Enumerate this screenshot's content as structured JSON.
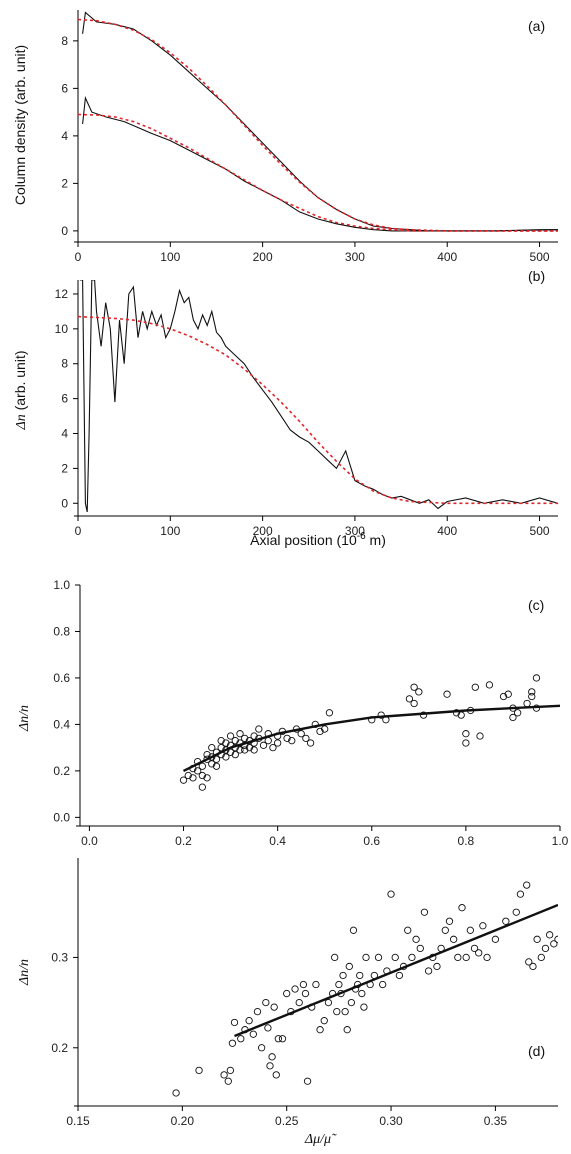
{
  "chart_data": [
    {
      "panel": "(a)",
      "type": "line",
      "ylabel": "Column density (arb. unit)",
      "xlabel": "",
      "xlim": [
        0,
        520
      ],
      "ylim": [
        -0.3,
        9.3
      ],
      "xticks": [
        "0",
        "100",
        "200",
        "300",
        "400",
        "500"
      ],
      "yticks": [
        "0",
        "2",
        "4",
        "6",
        "8"
      ],
      "series": [
        {
          "style": "black solid",
          "x": [
            5,
            8,
            20,
            40,
            60,
            80,
            100,
            120,
            140,
            160,
            180,
            200,
            220,
            240,
            260,
            280,
            300,
            320,
            340,
            360,
            380,
            400,
            450,
            500,
            520
          ],
          "values": [
            8.3,
            9.2,
            8.8,
            8.7,
            8.5,
            8.0,
            7.4,
            6.7,
            6.0,
            5.3,
            4.5,
            3.7,
            2.9,
            2.1,
            1.4,
            0.9,
            0.5,
            0.2,
            0.1,
            0.05,
            0.0,
            0.0,
            0.0,
            0.05,
            0.05
          ]
        },
        {
          "style": "red dashed",
          "x": [
            0,
            20,
            40,
            60,
            80,
            100,
            120,
            140,
            160,
            180,
            200,
            220,
            240,
            260,
            280,
            300,
            320,
            340,
            360,
            400,
            450,
            520
          ],
          "values": [
            8.9,
            8.85,
            8.7,
            8.45,
            8.05,
            7.5,
            6.85,
            6.1,
            5.3,
            4.45,
            3.6,
            2.8,
            2.05,
            1.4,
            0.9,
            0.5,
            0.25,
            0.1,
            0.05,
            0.0,
            0.0,
            0.0
          ]
        },
        {
          "style": "black solid",
          "x": [
            5,
            8,
            15,
            30,
            50,
            80,
            100,
            120,
            140,
            160,
            180,
            200,
            220,
            240,
            260,
            280,
            300,
            320,
            340,
            360,
            400,
            450,
            520
          ],
          "values": [
            4.5,
            5.6,
            5.0,
            4.8,
            4.6,
            4.1,
            3.8,
            3.4,
            3.0,
            2.6,
            2.1,
            1.7,
            1.3,
            0.8,
            0.5,
            0.3,
            0.15,
            0.05,
            0.0,
            0.0,
            0.0,
            0.0,
            0.05
          ]
        },
        {
          "style": "red dashed",
          "x": [
            0,
            20,
            40,
            60,
            80,
            100,
            120,
            140,
            160,
            180,
            200,
            220,
            240,
            260,
            280,
            300,
            320,
            340,
            360,
            400,
            450,
            520
          ],
          "values": [
            4.9,
            4.88,
            4.8,
            4.6,
            4.3,
            3.9,
            3.5,
            3.05,
            2.6,
            2.15,
            1.7,
            1.3,
            0.95,
            0.6,
            0.35,
            0.2,
            0.1,
            0.05,
            0.0,
            0.0,
            0.0,
            0.0
          ]
        }
      ]
    },
    {
      "panel": "(b)",
      "type": "line",
      "ylabel_math": "Δn",
      "ylabel_rest": " (arb. unit)",
      "xlabel_main": "Axial position (10",
      "xlabel_sup": "-6",
      "xlabel_tail": " m)",
      "xlim": [
        0,
        520
      ],
      "ylim": [
        -0.5,
        12.8
      ],
      "xticks": [
        "0",
        "100",
        "200",
        "300",
        "400",
        "500"
      ],
      "yticks": [
        "0",
        "2",
        "4",
        "6",
        "8",
        "10",
        "12"
      ],
      "series": [
        {
          "style": "black solid",
          "x": [
            2,
            5,
            8,
            10,
            12,
            15,
            18,
            20,
            25,
            30,
            35,
            40,
            45,
            50,
            55,
            60,
            65,
            70,
            75,
            80,
            85,
            90,
            95,
            100,
            105,
            110,
            115,
            120,
            125,
            130,
            135,
            140,
            145,
            150,
            155,
            160,
            170,
            180,
            190,
            200,
            210,
            220,
            230,
            240,
            250,
            260,
            270,
            280,
            290,
            300,
            310,
            320,
            330,
            340,
            350,
            360,
            370,
            380,
            390,
            400,
            420,
            440,
            460,
            480,
            500,
            520
          ],
          "values": [
            12.8,
            12.8,
            0.0,
            -0.5,
            4.0,
            12.8,
            12.8,
            11.0,
            9.0,
            11.5,
            10.0,
            5.8,
            10.5,
            8.0,
            12.0,
            12.4,
            9.5,
            11.0,
            10.0,
            11.0,
            10.2,
            10.8,
            9.5,
            10.0,
            11.0,
            12.2,
            11.5,
            11.8,
            10.5,
            10.0,
            10.8,
            10.2,
            11.0,
            9.8,
            9.5,
            9.0,
            8.5,
            8.0,
            7.2,
            6.5,
            5.8,
            5.0,
            4.2,
            3.8,
            3.5,
            3.0,
            2.5,
            2.0,
            3.0,
            1.3,
            1.0,
            0.8,
            0.5,
            0.3,
            0.4,
            0.2,
            0.0,
            0.2,
            -0.3,
            0.1,
            0.3,
            0.0,
            0.2,
            0.0,
            0.3,
            0.0
          ]
        },
        {
          "style": "red dashed",
          "x": [
            0,
            20,
            40,
            60,
            80,
            100,
            120,
            140,
            160,
            180,
            200,
            220,
            240,
            260,
            280,
            300,
            320,
            340,
            360,
            400,
            450,
            520
          ],
          "values": [
            10.7,
            10.65,
            10.6,
            10.5,
            10.3,
            10.0,
            9.6,
            9.1,
            8.5,
            7.7,
            6.8,
            5.8,
            4.7,
            3.5,
            2.4,
            1.4,
            0.7,
            0.3,
            0.1,
            0.0,
            0.0,
            0.0
          ]
        }
      ]
    },
    {
      "panel": "(c)",
      "type": "scatter",
      "ylabel_math": "Δn/n",
      "xlim": [
        -0.02,
        1.0
      ],
      "ylim": [
        -0.02,
        1.0
      ],
      "xticks": [
        "0.0",
        "0.2",
        "0.4",
        "0.6",
        "0.8",
        "1.0"
      ],
      "yticks": [
        "0.0",
        "0.2",
        "0.4",
        "0.6",
        "0.8",
        "1.0"
      ],
      "fit_curve": {
        "x": [
          0.2,
          0.25,
          0.3,
          0.35,
          0.4,
          0.5,
          0.6,
          0.7,
          0.8,
          0.9,
          1.0
        ],
        "values": [
          0.2,
          0.25,
          0.3,
          0.33,
          0.36,
          0.4,
          0.43,
          0.445,
          0.46,
          0.47,
          0.48
        ]
      },
      "points": [
        [
          0.2,
          0.16
        ],
        [
          0.21,
          0.18
        ],
        [
          0.22,
          0.17
        ],
        [
          0.22,
          0.21
        ],
        [
          0.23,
          0.2
        ],
        [
          0.23,
          0.24
        ],
        [
          0.24,
          0.22
        ],
        [
          0.24,
          0.18
        ],
        [
          0.24,
          0.13
        ],
        [
          0.25,
          0.17
        ],
        [
          0.25,
          0.25
        ],
        [
          0.25,
          0.27
        ],
        [
          0.26,
          0.23
        ],
        [
          0.26,
          0.26
        ],
        [
          0.26,
          0.3
        ],
        [
          0.27,
          0.25
        ],
        [
          0.27,
          0.28
        ],
        [
          0.27,
          0.22
        ],
        [
          0.28,
          0.27
        ],
        [
          0.28,
          0.3
        ],
        [
          0.28,
          0.33
        ],
        [
          0.29,
          0.26
        ],
        [
          0.29,
          0.29
        ],
        [
          0.29,
          0.32
        ],
        [
          0.3,
          0.28
        ],
        [
          0.3,
          0.31
        ],
        [
          0.3,
          0.35
        ],
        [
          0.31,
          0.3
        ],
        [
          0.31,
          0.33
        ],
        [
          0.31,
          0.27
        ],
        [
          0.32,
          0.29
        ],
        [
          0.32,
          0.32
        ],
        [
          0.32,
          0.36
        ],
        [
          0.33,
          0.31
        ],
        [
          0.33,
          0.34
        ],
        [
          0.33,
          0.29
        ],
        [
          0.34,
          0.3
        ],
        [
          0.34,
          0.33
        ],
        [
          0.35,
          0.32
        ],
        [
          0.35,
          0.35
        ],
        [
          0.35,
          0.29
        ],
        [
          0.36,
          0.34
        ],
        [
          0.36,
          0.38
        ],
        [
          0.37,
          0.31
        ],
        [
          0.38,
          0.33
        ],
        [
          0.38,
          0.36
        ],
        [
          0.39,
          0.3
        ],
        [
          0.4,
          0.35
        ],
        [
          0.4,
          0.32
        ],
        [
          0.41,
          0.37
        ],
        [
          0.42,
          0.34
        ],
        [
          0.43,
          0.33
        ],
        [
          0.44,
          0.38
        ],
        [
          0.45,
          0.36
        ],
        [
          0.46,
          0.34
        ],
        [
          0.47,
          0.32
        ],
        [
          0.48,
          0.4
        ],
        [
          0.49,
          0.37
        ],
        [
          0.5,
          0.38
        ],
        [
          0.51,
          0.45
        ],
        [
          0.6,
          0.42
        ],
        [
          0.62,
          0.44
        ],
        [
          0.63,
          0.42
        ],
        [
          0.68,
          0.51
        ],
        [
          0.69,
          0.56
        ],
        [
          0.69,
          0.49
        ],
        [
          0.7,
          0.54
        ],
        [
          0.71,
          0.44
        ],
        [
          0.76,
          0.53
        ],
        [
          0.78,
          0.45
        ],
        [
          0.79,
          0.44
        ],
        [
          0.8,
          0.32
        ],
        [
          0.8,
          0.36
        ],
        [
          0.81,
          0.46
        ],
        [
          0.82,
          0.56
        ],
        [
          0.83,
          0.35
        ],
        [
          0.85,
          0.57
        ],
        [
          0.88,
          0.52
        ],
        [
          0.89,
          0.53
        ],
        [
          0.9,
          0.43
        ],
        [
          0.9,
          0.47
        ],
        [
          0.91,
          0.45
        ],
        [
          0.93,
          0.49
        ],
        [
          0.94,
          0.54
        ],
        [
          0.94,
          0.52
        ],
        [
          0.95,
          0.6
        ],
        [
          0.95,
          0.47
        ]
      ]
    },
    {
      "panel": "(d)",
      "type": "scatter",
      "ylabel_math": "Δn/n",
      "xlabel_math": "Δμ/μ̃",
      "xlim": [
        0.15,
        0.38
      ],
      "ylim": [
        0.14,
        0.41
      ],
      "xticks": [
        "0.15",
        "0.20",
        "0.25",
        "0.30",
        "0.35"
      ],
      "yticks": [
        "0.2",
        "0.3"
      ],
      "fit_line": {
        "x": [
          0.225,
          0.38
        ],
        "values": [
          0.213,
          0.358
        ]
      },
      "points": [
        [
          0.197,
          0.15
        ],
        [
          0.208,
          0.175
        ],
        [
          0.22,
          0.17
        ],
        [
          0.222,
          0.163
        ],
        [
          0.223,
          0.175
        ],
        [
          0.224,
          0.205
        ],
        [
          0.225,
          0.228
        ],
        [
          0.228,
          0.21
        ],
        [
          0.23,
          0.22
        ],
        [
          0.232,
          0.23
        ],
        [
          0.234,
          0.215
        ],
        [
          0.236,
          0.24
        ],
        [
          0.238,
          0.2
        ],
        [
          0.24,
          0.25
        ],
        [
          0.241,
          0.222
        ],
        [
          0.242,
          0.18
        ],
        [
          0.243,
          0.19
        ],
        [
          0.244,
          0.245
        ],
        [
          0.245,
          0.17
        ],
        [
          0.246,
          0.21
        ],
        [
          0.248,
          0.21
        ],
        [
          0.25,
          0.26
        ],
        [
          0.252,
          0.24
        ],
        [
          0.254,
          0.265
        ],
        [
          0.256,
          0.25
        ],
        [
          0.258,
          0.27
        ],
        [
          0.259,
          0.26
        ],
        [
          0.26,
          0.163
        ],
        [
          0.262,
          0.245
        ],
        [
          0.264,
          0.27
        ],
        [
          0.266,
          0.22
        ],
        [
          0.268,
          0.23
        ],
        [
          0.27,
          0.25
        ],
        [
          0.272,
          0.26
        ],
        [
          0.273,
          0.3
        ],
        [
          0.274,
          0.24
        ],
        [
          0.275,
          0.27
        ],
        [
          0.276,
          0.26
        ],
        [
          0.277,
          0.28
        ],
        [
          0.278,
          0.24
        ],
        [
          0.279,
          0.22
        ],
        [
          0.28,
          0.29
        ],
        [
          0.281,
          0.25
        ],
        [
          0.282,
          0.33
        ],
        [
          0.283,
          0.265
        ],
        [
          0.284,
          0.27
        ],
        [
          0.285,
          0.28
        ],
        [
          0.286,
          0.26
        ],
        [
          0.287,
          0.245
        ],
        [
          0.288,
          0.3
        ],
        [
          0.29,
          0.27
        ],
        [
          0.292,
          0.28
        ],
        [
          0.294,
          0.3
        ],
        [
          0.296,
          0.27
        ],
        [
          0.298,
          0.285
        ],
        [
          0.3,
          0.37
        ],
        [
          0.302,
          0.3
        ],
        [
          0.304,
          0.28
        ],
        [
          0.306,
          0.29
        ],
        [
          0.308,
          0.33
        ],
        [
          0.31,
          0.3
        ],
        [
          0.312,
          0.32
        ],
        [
          0.314,
          0.31
        ],
        [
          0.316,
          0.35
        ],
        [
          0.318,
          0.285
        ],
        [
          0.32,
          0.3
        ],
        [
          0.322,
          0.29
        ],
        [
          0.324,
          0.31
        ],
        [
          0.326,
          0.33
        ],
        [
          0.328,
          0.34
        ],
        [
          0.33,
          0.32
        ],
        [
          0.332,
          0.3
        ],
        [
          0.334,
          0.355
        ],
        [
          0.336,
          0.3
        ],
        [
          0.338,
          0.33
        ],
        [
          0.34,
          0.31
        ],
        [
          0.342,
          0.305
        ],
        [
          0.344,
          0.335
        ],
        [
          0.346,
          0.3
        ],
        [
          0.35,
          0.32
        ],
        [
          0.355,
          0.34
        ],
        [
          0.36,
          0.35
        ],
        [
          0.362,
          0.37
        ],
        [
          0.365,
          0.38
        ],
        [
          0.366,
          0.295
        ],
        [
          0.368,
          0.29
        ],
        [
          0.37,
          0.32
        ],
        [
          0.372,
          0.3
        ],
        [
          0.374,
          0.31
        ],
        [
          0.376,
          0.325
        ],
        [
          0.378,
          0.315
        ],
        [
          0.38,
          0.32
        ]
      ]
    }
  ]
}
